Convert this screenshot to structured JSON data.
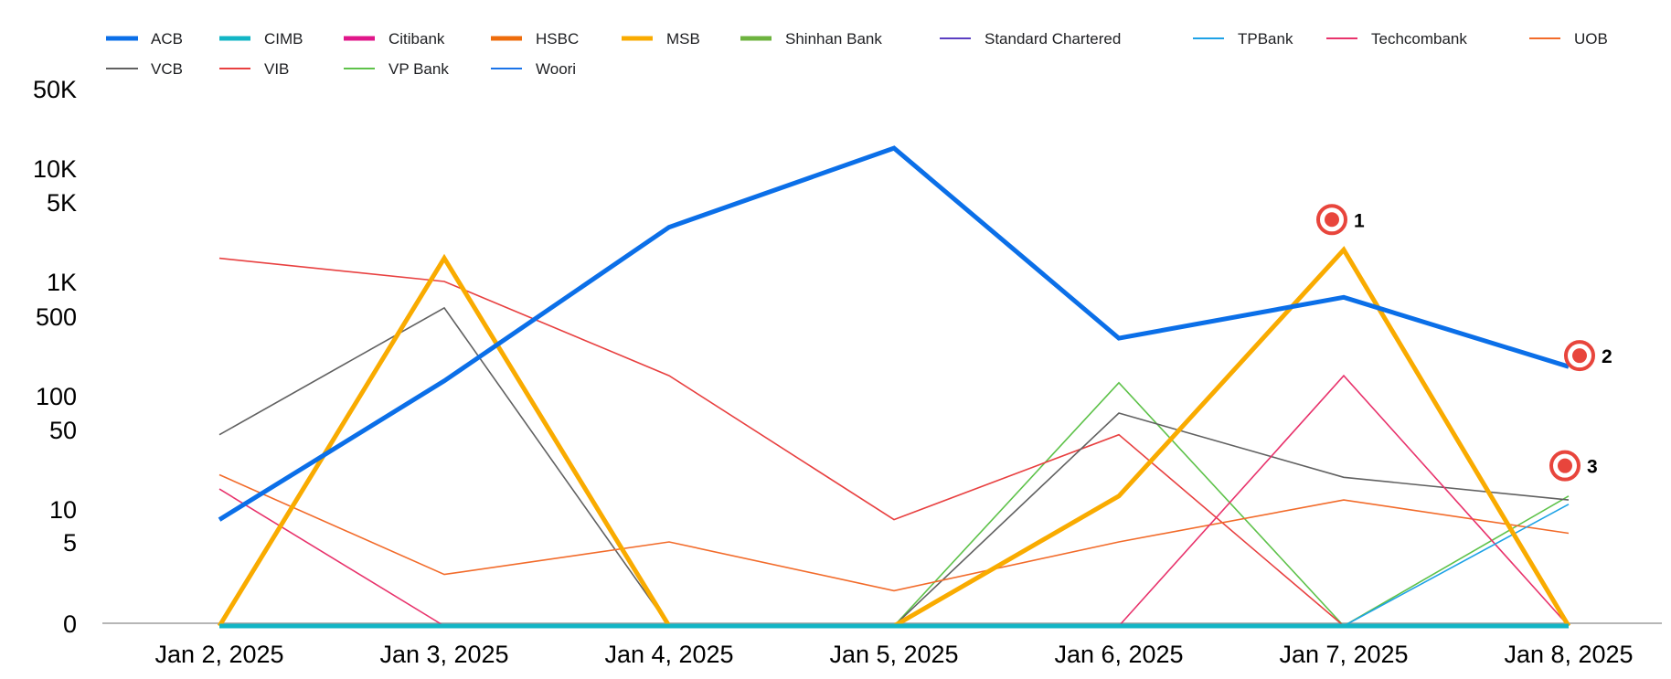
{
  "chart_data": {
    "type": "line",
    "title": "",
    "xlabel": "",
    "ylabel": "",
    "y_scale": "symlog",
    "y_ticks": [
      "0",
      "5",
      "10",
      "50",
      "100",
      "500",
      "1K",
      "5K",
      "10K",
      "50K"
    ],
    "y_tick_values": [
      0,
      5,
      10,
      50,
      100,
      500,
      1000,
      5000,
      10000,
      50000
    ],
    "ylim": [
      0,
      50000
    ],
    "grid": false,
    "legend_position": "top",
    "categories": [
      "Jan 2, 2025",
      "Jan 3, 2025",
      "Jan 4, 2025",
      "Jan 5, 2025",
      "Jan 6, 2025",
      "Jan 7, 2025",
      "Jan 8, 2025"
    ],
    "series": [
      {
        "name": "ACB",
        "color": "#0b6fe8",
        "emphasis": true,
        "values": [
          8,
          135,
          3000,
          15000,
          320,
          730,
          180
        ]
      },
      {
        "name": "CIMB",
        "color": "#12b5c5",
        "emphasis": true,
        "values": [
          0,
          0,
          0,
          0,
          0,
          0,
          0
        ]
      },
      {
        "name": "Citibank",
        "color": "#e0168a",
        "emphasis": true,
        "values": [
          0,
          0,
          0,
          0,
          0,
          0,
          0
        ]
      },
      {
        "name": "HSBC",
        "color": "#ee6c0c",
        "emphasis": true,
        "values": [
          0,
          0,
          0,
          0,
          0,
          0,
          0
        ]
      },
      {
        "name": "MSB",
        "color": "#f9ab00",
        "emphasis": true,
        "values": [
          0,
          1600,
          0,
          0,
          13,
          1900,
          0
        ]
      },
      {
        "name": "Shinhan Bank",
        "color": "#6db33f",
        "emphasis": true,
        "values": [
          0,
          0,
          0,
          0,
          0,
          0,
          0
        ]
      },
      {
        "name": "Standard Chartered",
        "color": "#5b3ec2",
        "emphasis": false,
        "values": [
          0,
          0,
          0,
          0,
          0,
          0,
          0
        ]
      },
      {
        "name": "TPBank",
        "color": "#1ea2e6",
        "emphasis": false,
        "values": [
          0,
          0,
          0,
          0,
          0,
          0,
          11
        ]
      },
      {
        "name": "Techcombank",
        "color": "#e8336c",
        "emphasis": false,
        "values": [
          15,
          0,
          0,
          0,
          0,
          150,
          0
        ]
      },
      {
        "name": "UOB",
        "color": "#f26b2a",
        "emphasis": false,
        "values": [
          20,
          3,
          5,
          2,
          5,
          12,
          6
        ]
      },
      {
        "name": "VCB",
        "color": "#616161",
        "emphasis": false,
        "values": [
          45,
          590,
          0,
          0,
          70,
          19,
          12
        ]
      },
      {
        "name": "VIB",
        "color": "#e84040",
        "emphasis": false,
        "values": [
          1600,
          1000,
          150,
          8,
          45,
          0,
          0
        ]
      },
      {
        "name": "VP Bank",
        "color": "#5ec24a",
        "emphasis": false,
        "values": [
          0,
          0,
          0,
          0,
          130,
          0,
          13
        ]
      },
      {
        "name": "Woori",
        "color": "#1a73e8",
        "emphasis": false,
        "values": [
          0,
          0,
          0,
          0,
          0,
          0,
          0
        ]
      }
    ],
    "annotations": [
      {
        "label": "1",
        "category": "Jan 7, 2025",
        "value": 3500
      },
      {
        "label": "2",
        "category": "Jan 8, 2025",
        "value": 225
      },
      {
        "label": "3",
        "category": "Jan 8, 2025",
        "value": 24
      }
    ]
  }
}
